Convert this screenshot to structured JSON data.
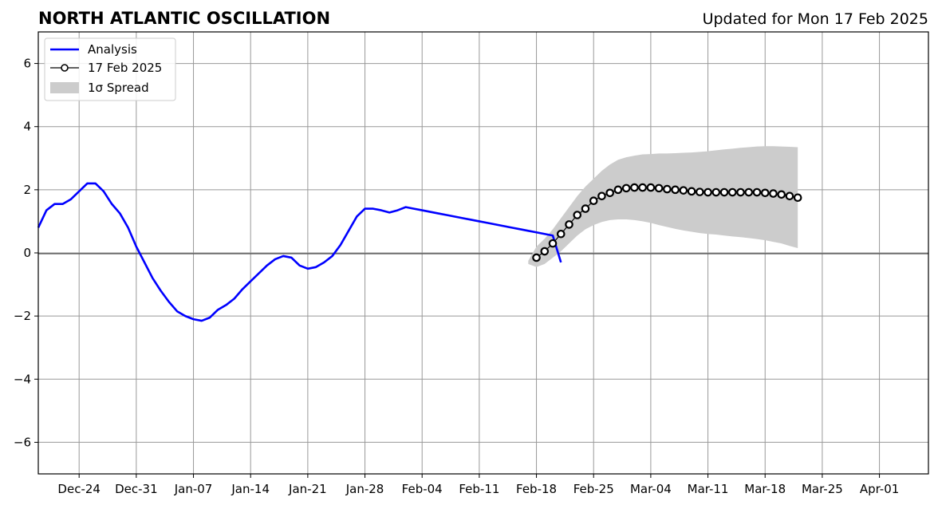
{
  "chart_data": {
    "type": "line",
    "title": "NORTH ATLANTIC OSCILLATION",
    "subtitle": "Updated for Mon 17 Feb 2025",
    "xlabel": "",
    "ylabel": "",
    "x_axis_type": "date",
    "xlim": [
      "2024-12-19",
      "2025-04-07"
    ],
    "ylim": [
      -7,
      7
    ],
    "x_ticks": [
      {
        "date": "2024-12-24",
        "label": "Dec-24"
      },
      {
        "date": "2024-12-31",
        "label": "Dec-31"
      },
      {
        "date": "2025-01-07",
        "label": "Jan-07"
      },
      {
        "date": "2025-01-14",
        "label": "Jan-14"
      },
      {
        "date": "2025-01-21",
        "label": "Jan-21"
      },
      {
        "date": "2025-01-28",
        "label": "Jan-28"
      },
      {
        "date": "2025-02-04",
        "label": "Feb-04"
      },
      {
        "date": "2025-02-11",
        "label": "Feb-11"
      },
      {
        "date": "2025-02-18",
        "label": "Feb-18"
      },
      {
        "date": "2025-02-25",
        "label": "Feb-25"
      },
      {
        "date": "2025-03-04",
        "label": "Mar-04"
      },
      {
        "date": "2025-03-11",
        "label": "Mar-11"
      },
      {
        "date": "2025-03-18",
        "label": "Mar-18"
      },
      {
        "date": "2025-03-25",
        "label": "Mar-25"
      },
      {
        "date": "2025-04-01",
        "label": "Apr-01"
      }
    ],
    "y_ticks": [
      {
        "value": -6,
        "label": "−6"
      },
      {
        "value": -4,
        "label": "−4"
      },
      {
        "value": -2,
        "label": "−2"
      },
      {
        "value": 0,
        "label": "0"
      },
      {
        "value": 2,
        "label": "2"
      },
      {
        "value": 4,
        "label": "4"
      },
      {
        "value": 6,
        "label": "6"
      }
    ],
    "grid": true,
    "zero_line": true,
    "legend_position": "top-left",
    "colors": {
      "analysis": "#0000ff",
      "forecast_marker_edge": "#000000",
      "forecast_marker_fill": "#ffffff",
      "spread": "#cccccc",
      "grid": "#999999",
      "zero_line": "#555555"
    },
    "legend": [
      {
        "key": "analysis",
        "label": "Analysis"
      },
      {
        "key": "forecast",
        "label": "17 Feb 2025"
      },
      {
        "key": "spread",
        "label": "1σ Spread"
      }
    ],
    "series": [
      {
        "name": "Analysis",
        "kind": "line",
        "points": [
          [
            "2024-12-19",
            0.8
          ],
          [
            "2024-12-20",
            1.35
          ],
          [
            "2024-12-21",
            1.55
          ],
          [
            "2024-12-22",
            1.55
          ],
          [
            "2024-12-23",
            1.7
          ],
          [
            "2024-12-24",
            1.95
          ],
          [
            "2024-12-25",
            2.2
          ],
          [
            "2024-12-26",
            2.2
          ],
          [
            "2024-12-27",
            1.95
          ],
          [
            "2024-12-28",
            1.55
          ],
          [
            "2024-12-29",
            1.25
          ],
          [
            "2024-12-30",
            0.8
          ],
          [
            "2024-12-31",
            0.2
          ],
          [
            "2025-01-01",
            -0.3
          ],
          [
            "2025-01-02",
            -0.8
          ],
          [
            "2025-01-03",
            -1.2
          ],
          [
            "2025-01-04",
            -1.55
          ],
          [
            "2025-01-05",
            -1.85
          ],
          [
            "2025-01-06",
            -2.0
          ],
          [
            "2025-01-07",
            -2.1
          ],
          [
            "2025-01-08",
            -2.15
          ],
          [
            "2025-01-09",
            -2.05
          ],
          [
            "2025-01-10",
            -1.8
          ],
          [
            "2025-01-11",
            -1.65
          ],
          [
            "2025-01-12",
            -1.45
          ],
          [
            "2025-01-13",
            -1.15
          ],
          [
            "2025-01-14",
            -0.9
          ],
          [
            "2025-01-15",
            -0.65
          ],
          [
            "2025-01-16",
            -0.4
          ],
          [
            "2025-01-17",
            -0.2
          ],
          [
            "2025-01-18",
            -0.1
          ],
          [
            "2025-01-19",
            -0.15
          ],
          [
            "2025-01-20",
            -0.4
          ],
          [
            "2025-01-21",
            -0.5
          ],
          [
            "2025-01-22",
            -0.45
          ],
          [
            "2025-01-23",
            -0.3
          ],
          [
            "2025-01-24",
            -0.1
          ],
          [
            "2025-01-25",
            0.25
          ],
          [
            "2025-01-26",
            0.7
          ],
          [
            "2025-01-27",
            1.15
          ],
          [
            "2025-01-28",
            1.4
          ],
          [
            "2025-01-29",
            1.4
          ],
          [
            "2025-01-30",
            1.35
          ],
          [
            "2025-01-31",
            1.28
          ],
          [
            "2025-02-01",
            1.35
          ],
          [
            "2025-02-02",
            1.45
          ],
          [
            "2025-02-03",
            1.4
          ],
          [
            "2025-02-04",
            1.35
          ],
          [
            "2025-02-05",
            1.3
          ],
          [
            "2025-02-06",
            1.25
          ],
          [
            "2025-02-07",
            1.2
          ],
          [
            "2025-02-08",
            1.15
          ],
          [
            "2025-02-09",
            1.1
          ],
          [
            "2025-02-10",
            1.05
          ],
          [
            "2025-02-11",
            1.0
          ],
          [
            "2025-02-12",
            0.95
          ],
          [
            "2025-02-13",
            0.9
          ],
          [
            "2025-02-14",
            0.85
          ],
          [
            "2025-02-15",
            0.8
          ],
          [
            "2025-02-16",
            0.75
          ],
          [
            "2025-02-17",
            0.7
          ],
          [
            "2025-02-18",
            0.65
          ],
          [
            "2025-02-19",
            0.6
          ],
          [
            "2025-02-20",
            0.55
          ],
          [
            "2025-02-21",
            -0.3
          ]
        ]
      },
      {
        "name": "17 Feb 2025",
        "kind": "marker-line",
        "points": [
          [
            "2025-02-18",
            -0.15
          ],
          [
            "2025-02-19",
            0.05
          ],
          [
            "2025-02-20",
            0.3
          ],
          [
            "2025-02-21",
            0.6
          ],
          [
            "2025-02-22",
            0.9
          ],
          [
            "2025-02-23",
            1.2
          ],
          [
            "2025-02-24",
            1.4
          ],
          [
            "2025-02-25",
            1.65
          ],
          [
            "2025-02-26",
            1.8
          ],
          [
            "2025-02-27",
            1.9
          ],
          [
            "2025-02-28",
            2.0
          ],
          [
            "2025-03-01",
            2.05
          ],
          [
            "2025-03-02",
            2.07
          ],
          [
            "2025-03-03",
            2.07
          ],
          [
            "2025-03-04",
            2.07
          ],
          [
            "2025-03-05",
            2.05
          ],
          [
            "2025-03-06",
            2.02
          ],
          [
            "2025-03-07",
            2.0
          ],
          [
            "2025-03-08",
            1.98
          ],
          [
            "2025-03-09",
            1.95
          ],
          [
            "2025-03-10",
            1.93
          ],
          [
            "2025-03-11",
            1.92
          ],
          [
            "2025-03-12",
            1.92
          ],
          [
            "2025-03-13",
            1.92
          ],
          [
            "2025-03-14",
            1.92
          ],
          [
            "2025-03-15",
            1.92
          ],
          [
            "2025-03-16",
            1.92
          ],
          [
            "2025-03-17",
            1.92
          ],
          [
            "2025-03-18",
            1.9
          ],
          [
            "2025-03-19",
            1.88
          ],
          [
            "2025-03-20",
            1.85
          ],
          [
            "2025-03-21",
            1.8
          ],
          [
            "2025-03-22",
            1.75
          ]
        ]
      }
    ],
    "spread": {
      "name": "1σ Spread",
      "upper": [
        [
          "2025-02-17",
          -0.25
        ],
        [
          "2025-02-18",
          0.2
        ],
        [
          "2025-02-19",
          0.45
        ],
        [
          "2025-02-20",
          0.75
        ],
        [
          "2025-02-21",
          1.1
        ],
        [
          "2025-02-22",
          1.45
        ],
        [
          "2025-02-23",
          1.8
        ],
        [
          "2025-02-24",
          2.1
        ],
        [
          "2025-02-25",
          2.35
        ],
        [
          "2025-02-26",
          2.6
        ],
        [
          "2025-02-27",
          2.8
        ],
        [
          "2025-02-28",
          2.95
        ],
        [
          "2025-03-01",
          3.03
        ],
        [
          "2025-03-02",
          3.08
        ],
        [
          "2025-03-03",
          3.12
        ],
        [
          "2025-03-04",
          3.13
        ],
        [
          "2025-03-05",
          3.15
        ],
        [
          "2025-03-06",
          3.15
        ],
        [
          "2025-03-07",
          3.16
        ],
        [
          "2025-03-08",
          3.17
        ],
        [
          "2025-03-09",
          3.18
        ],
        [
          "2025-03-10",
          3.2
        ],
        [
          "2025-03-11",
          3.22
        ],
        [
          "2025-03-12",
          3.25
        ],
        [
          "2025-03-13",
          3.28
        ],
        [
          "2025-03-14",
          3.3
        ],
        [
          "2025-03-15",
          3.33
        ],
        [
          "2025-03-16",
          3.35
        ],
        [
          "2025-03-17",
          3.37
        ],
        [
          "2025-03-18",
          3.38
        ],
        [
          "2025-03-19",
          3.38
        ],
        [
          "2025-03-20",
          3.37
        ],
        [
          "2025-03-21",
          3.36
        ],
        [
          "2025-03-22",
          3.35
        ]
      ],
      "lower": [
        [
          "2025-02-17",
          -0.35
        ],
        [
          "2025-02-18",
          -0.45
        ],
        [
          "2025-02-19",
          -0.35
        ],
        [
          "2025-02-20",
          -0.15
        ],
        [
          "2025-02-21",
          0.05
        ],
        [
          "2025-02-22",
          0.3
        ],
        [
          "2025-02-23",
          0.55
        ],
        [
          "2025-02-24",
          0.75
        ],
        [
          "2025-02-25",
          0.88
        ],
        [
          "2025-02-26",
          0.98
        ],
        [
          "2025-02-27",
          1.04
        ],
        [
          "2025-02-28",
          1.06
        ],
        [
          "2025-03-01",
          1.06
        ],
        [
          "2025-03-02",
          1.04
        ],
        [
          "2025-03-03",
          1.0
        ],
        [
          "2025-03-04",
          0.95
        ],
        [
          "2025-03-05",
          0.88
        ],
        [
          "2025-03-06",
          0.82
        ],
        [
          "2025-03-07",
          0.76
        ],
        [
          "2025-03-08",
          0.71
        ],
        [
          "2025-03-09",
          0.67
        ],
        [
          "2025-03-10",
          0.63
        ],
        [
          "2025-03-11",
          0.6
        ],
        [
          "2025-03-12",
          0.58
        ],
        [
          "2025-03-13",
          0.55
        ],
        [
          "2025-03-14",
          0.52
        ],
        [
          "2025-03-15",
          0.5
        ],
        [
          "2025-03-16",
          0.47
        ],
        [
          "2025-03-17",
          0.44
        ],
        [
          "2025-03-18",
          0.4
        ],
        [
          "2025-03-19",
          0.35
        ],
        [
          "2025-03-20",
          0.3
        ],
        [
          "2025-03-21",
          0.22
        ],
        [
          "2025-03-22",
          0.15
        ]
      ]
    }
  }
}
